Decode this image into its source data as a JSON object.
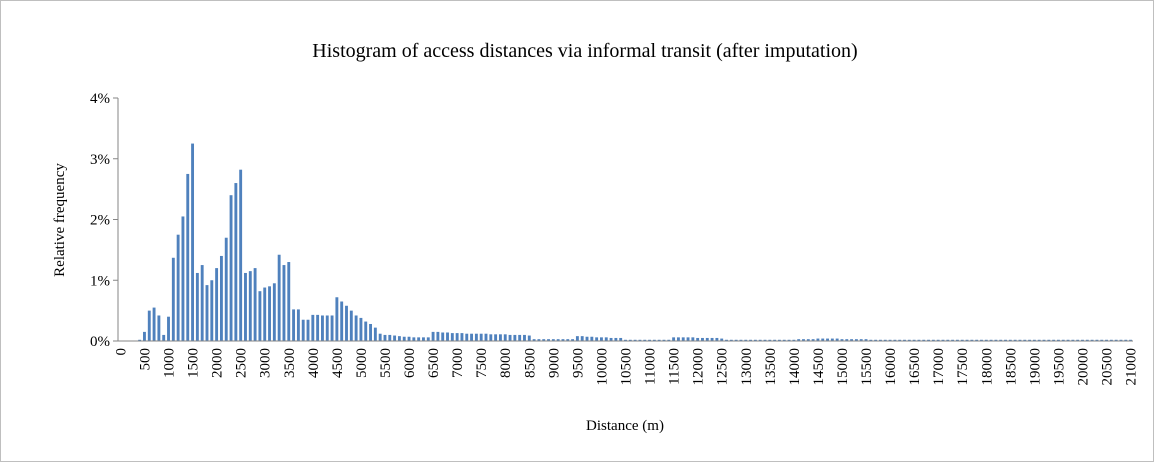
{
  "chart_data": {
    "type": "histogram",
    "title": "Histogram of access distances via informal transit (after imputation)",
    "x_label": "Distance (m)",
    "y_label": "Relative frequency",
    "color": "#4f81bd",
    "ylim": [
      0,
      4
    ],
    "yticks": [
      {
        "value": 0,
        "label": "0%"
      },
      {
        "value": 1,
        "label": "1%"
      },
      {
        "value": 2,
        "label": "2%"
      },
      {
        "value": 3,
        "label": "3%"
      },
      {
        "value": 4,
        "label": "4%"
      }
    ],
    "categories": [
      "0",
      null,
      null,
      null,
      null,
      "500",
      null,
      null,
      null,
      null,
      "1000",
      null,
      null,
      null,
      null,
      "1500",
      null,
      null,
      null,
      null,
      "2000",
      null,
      null,
      null,
      null,
      "2500",
      null,
      null,
      null,
      null,
      "3000",
      null,
      null,
      null,
      null,
      "3500",
      null,
      null,
      null,
      null,
      "4000",
      null,
      null,
      null,
      null,
      "4500",
      null,
      null,
      null,
      null,
      "5000",
      null,
      null,
      null,
      null,
      "5500",
      null,
      null,
      null,
      null,
      "6000",
      null,
      null,
      null,
      null,
      "6500",
      null,
      null,
      null,
      null,
      "7000",
      null,
      null,
      null,
      null,
      "7500",
      null,
      null,
      null,
      null,
      "8000",
      null,
      null,
      null,
      null,
      "8500",
      null,
      null,
      null,
      null,
      "9000",
      null,
      null,
      null,
      null,
      "9500",
      null,
      null,
      null,
      null,
      "10000",
      null,
      null,
      null,
      null,
      "10500",
      null,
      null,
      null,
      null,
      "11000",
      null,
      null,
      null,
      null,
      "11500",
      null,
      null,
      null,
      null,
      "12000",
      null,
      null,
      null,
      null,
      "12500",
      null,
      null,
      null,
      null,
      "13000",
      null,
      null,
      null,
      null,
      "13500",
      null,
      null,
      null,
      null,
      "14000",
      null,
      null,
      null,
      null,
      "14500",
      null,
      null,
      null,
      null,
      "15000",
      null,
      null,
      null,
      null,
      "15500",
      null,
      null,
      null,
      null,
      "16000",
      null,
      null,
      null,
      null,
      "16500",
      null,
      null,
      null,
      null,
      "17000",
      null,
      null,
      null,
      null,
      "17500",
      null,
      null,
      null,
      null,
      "18000",
      null,
      null,
      null,
      null,
      "18500",
      null,
      null,
      null,
      null,
      "19000",
      null,
      null,
      null,
      null,
      "19500",
      null,
      null,
      null,
      null,
      "20000",
      null,
      null,
      null,
      null,
      "20500",
      null,
      null,
      null,
      null,
      "21000"
    ],
    "values": [
      0,
      0,
      0,
      0,
      0.02,
      0.15,
      0.5,
      0.55,
      0.42,
      0.1,
      0.4,
      1.37,
      1.75,
      2.05,
      2.75,
      3.25,
      1.12,
      1.25,
      0.92,
      1.0,
      1.2,
      1.4,
      1.7,
      2.4,
      2.6,
      2.82,
      1.12,
      1.15,
      1.2,
      0.82,
      0.88,
      0.9,
      0.95,
      1.42,
      1.25,
      1.3,
      0.52,
      0.52,
      0.35,
      0.35,
      0.43,
      0.43,
      0.42,
      0.42,
      0.42,
      0.72,
      0.65,
      0.58,
      0.5,
      0.42,
      0.38,
      0.32,
      0.28,
      0.22,
      0.12,
      0.1,
      0.1,
      0.09,
      0.08,
      0.07,
      0.07,
      0.06,
      0.06,
      0.06,
      0.06,
      0.15,
      0.15,
      0.14,
      0.14,
      0.13,
      0.13,
      0.13,
      0.12,
      0.12,
      0.12,
      0.12,
      0.12,
      0.11,
      0.11,
      0.11,
      0.11,
      0.1,
      0.1,
      0.1,
      0.1,
      0.09,
      0.03,
      0.03,
      0.03,
      0.03,
      0.03,
      0.03,
      0.03,
      0.03,
      0.03,
      0.08,
      0.08,
      0.07,
      0.07,
      0.06,
      0.06,
      0.06,
      0.05,
      0.05,
      0.05,
      0.02,
      0.02,
      0.02,
      0.02,
      0.02,
      0.02,
      0.02,
      0.02,
      0.02,
      0.02,
      0.06,
      0.06,
      0.06,
      0.06,
      0.06,
      0.05,
      0.05,
      0.05,
      0.05,
      0.05,
      0.04,
      0.02,
      0.02,
      0.02,
      0.02,
      0.02,
      0.02,
      0.02,
      0.02,
      0.02,
      0.02,
      0.02,
      0.02,
      0.02,
      0.02,
      0.02,
      0.03,
      0.03,
      0.03,
      0.03,
      0.04,
      0.04,
      0.04,
      0.04,
      0.04,
      0.03,
      0.03,
      0.03,
      0.03,
      0.03,
      0.03,
      0.02,
      0.02,
      0.02,
      0.02,
      0.02,
      0.02,
      0.02,
      0.02,
      0.02,
      0.02,
      0.02,
      0.02,
      0.02,
      0.02,
      0.02,
      0.02,
      0.02,
      0.02,
      0.02,
      0.02,
      0.02,
      0.02,
      0.02,
      0.02,
      0.02,
      0.02,
      0.02,
      0.02,
      0.02,
      0.02,
      0.02,
      0.02,
      0.02,
      0.02,
      0.02,
      0.02,
      0.02,
      0.02,
      0.02,
      0.02,
      0.02,
      0.02,
      0.02,
      0.02,
      0.02,
      0.02,
      0.02,
      0.02,
      0.02,
      0.02,
      0.02,
      0.02,
      0.02,
      0.02,
      0.02
    ]
  }
}
